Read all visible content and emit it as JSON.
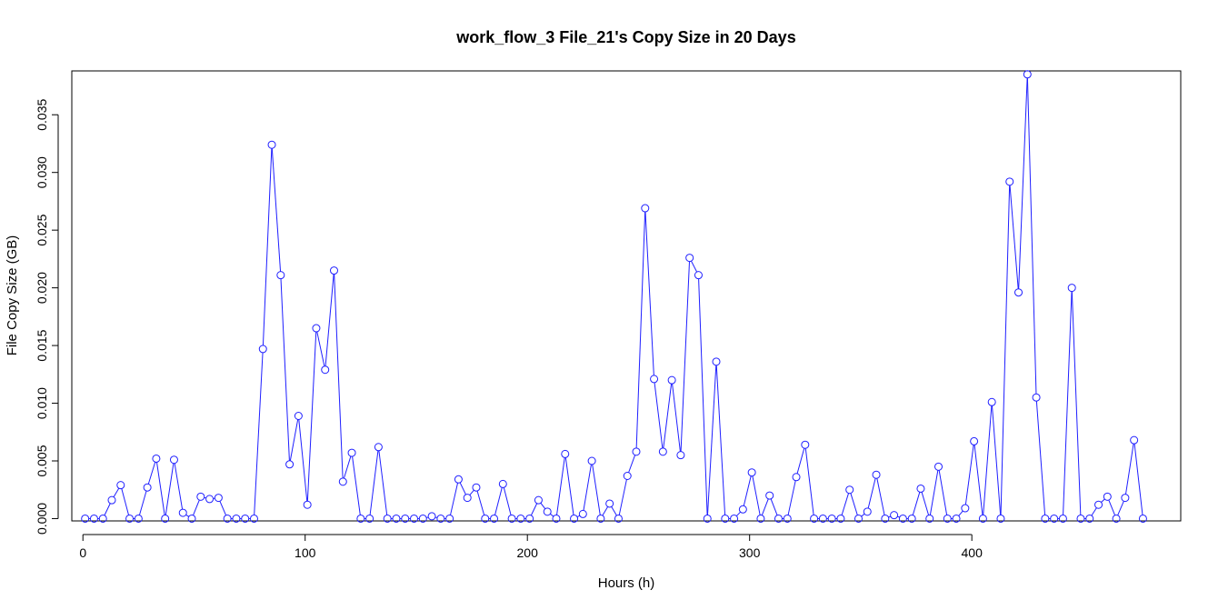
{
  "chart_data": {
    "type": "line",
    "title": "work_flow_3 File_21's Copy Size in 20 Days",
    "xlabel": "Hours (h)",
    "ylabel": "File Copy Size (GB)",
    "xlim": [
      -5,
      494
    ],
    "ylim": [
      -0.0002,
      0.0388
    ],
    "x_ticks": [
      0,
      100,
      200,
      300,
      400
    ],
    "x_tick_labels": [
      "0",
      "100",
      "200",
      "300",
      "400"
    ],
    "y_ticks": [
      0,
      0.005,
      0.01,
      0.015,
      0.02,
      0.025,
      0.03,
      0.035
    ],
    "y_tick_labels": [
      "0.000",
      "0.005",
      "0.010",
      "0.015",
      "0.020",
      "0.025",
      "0.030",
      "0.035"
    ],
    "grid": false,
    "markers": "open-circle",
    "color": "#1f1fff",
    "x": [
      1,
      5,
      9,
      13,
      17,
      21,
      25,
      29,
      33,
      37,
      41,
      45,
      49,
      53,
      57,
      61,
      65,
      69,
      73,
      77,
      81,
      85,
      89,
      93,
      97,
      101,
      105,
      109,
      113,
      117,
      121,
      125,
      129,
      133,
      137,
      141,
      145,
      149,
      153,
      157,
      161,
      165,
      169,
      173,
      177,
      181,
      185,
      189,
      193,
      197,
      201,
      205,
      209,
      213,
      217,
      221,
      225,
      229,
      233,
      237,
      241,
      245,
      249,
      253,
      257,
      261,
      265,
      269,
      273,
      277,
      281,
      285,
      289,
      293,
      297,
      301,
      305,
      309,
      313,
      317,
      321,
      325,
      329,
      333,
      337,
      341,
      345,
      349,
      353,
      357,
      361,
      365,
      369,
      373,
      377,
      381,
      385,
      389,
      393,
      397,
      401,
      405,
      409,
      413,
      417,
      421,
      425,
      429,
      433,
      437,
      441,
      445,
      449,
      453,
      457,
      461,
      465,
      469,
      473,
      477
    ],
    "y": [
      0,
      0,
      0,
      0.0016,
      0.0029,
      0,
      0,
      0.0027,
      0.0052,
      0,
      0.0051,
      0.0005,
      0,
      0.0019,
      0.0017,
      0.0018,
      0,
      0,
      0,
      0,
      0.0147,
      0.0324,
      0.0211,
      0.0047,
      0.0089,
      0.0012,
      0.0165,
      0.0129,
      0.0215,
      0.0032,
      0.0057,
      0,
      0,
      0.0062,
      0,
      0,
      0,
      0,
      0,
      0.0002,
      0,
      0,
      0.0034,
      0.0018,
      0.0027,
      0,
      0,
      0.003,
      0,
      0,
      0,
      0.0016,
      0.0006,
      0,
      0.0056,
      0,
      0.0004,
      0.005,
      0,
      0.0013,
      0,
      0.0037,
      0.0058,
      0.0269,
      0.0121,
      0.0058,
      0.012,
      0.0055,
      0.0226,
      0.0211,
      0,
      0.0136,
      0,
      0,
      0.0008,
      0.004,
      0,
      0.002,
      0,
      0,
      0.0036,
      0.0064,
      0,
      0,
      0,
      0,
      0.0025,
      0,
      0.0006,
      0.0038,
      0,
      0.0003,
      0,
      0,
      0.0026,
      0,
      0.0045,
      0,
      0,
      0.0009,
      0.0067,
      0,
      0.0101,
      0,
      0.0292,
      0.0196,
      0.0385,
      0.0105,
      0,
      0,
      0,
      0.02,
      0,
      0,
      0.0012,
      0.0019,
      0,
      0.0018,
      0.0068,
      0
    ]
  }
}
